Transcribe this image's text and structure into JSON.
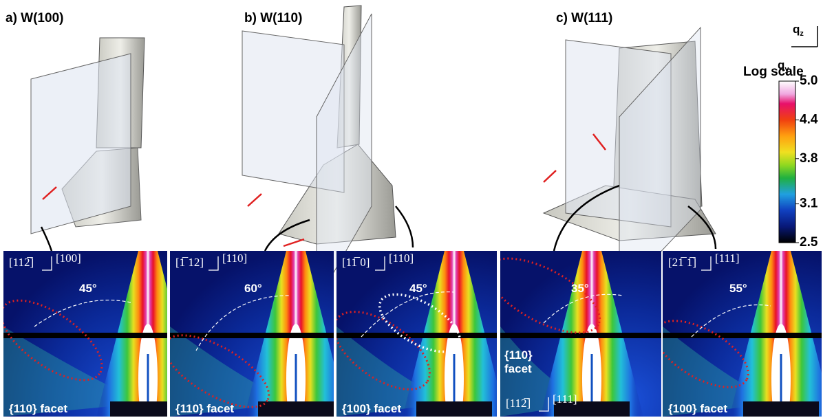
{
  "panels_top": [
    "a) W(100)",
    "b)  W(110)",
    "c) W(111)"
  ],
  "axes": {
    "vertical": {
      "symbol": "q",
      "sub": "z"
    },
    "horizontal": {
      "symbol": "q",
      "sub": "y"
    }
  },
  "colorbar": {
    "label": "Log scale",
    "ticks": [
      {
        "value": 5.0,
        "label": "5.0"
      },
      {
        "value": 4.4,
        "label": "4.4"
      },
      {
        "value": 3.8,
        "label": "3.8"
      },
      {
        "value": 3.1,
        "label": "3.1"
      },
      {
        "value": 2.5,
        "label": "2.5"
      }
    ],
    "range": [
      2.5,
      5.0
    ]
  },
  "maps": [
    {
      "dir_h": "[112̅]",
      "dir_v": "[100]",
      "angle": "45°",
      "facet": "{110} facet"
    },
    {
      "dir_h": "[1̅ 12]",
      "dir_v": "[110]",
      "angle": "60°",
      "facet": "{110} facet"
    },
    {
      "dir_h": "[11̅ 0]",
      "dir_v": "[110]",
      "angle": "45°",
      "facet": "{100} facet"
    },
    {
      "dir_h": "[112̅]",
      "dir_v": "[111]",
      "angle": "35°",
      "facet": [
        "{110}",
        "facet"
      ]
    },
    {
      "dir_h": "[21̅ 1̅]",
      "dir_v": "[111]",
      "angle": "55°",
      "facet": "{100} facet"
    }
  ]
}
